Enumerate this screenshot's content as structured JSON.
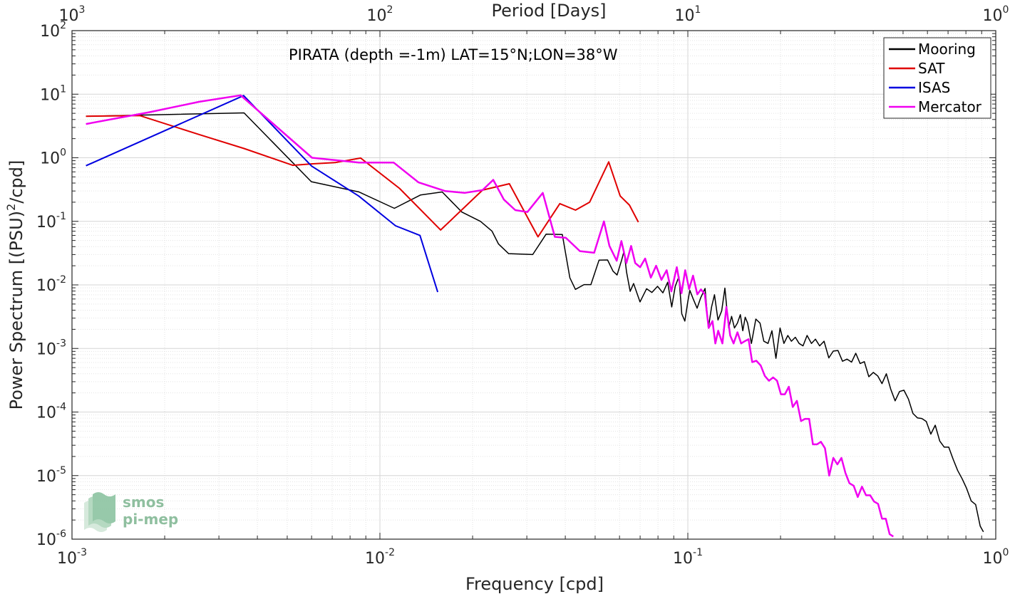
{
  "chart_data": {
    "type": "line",
    "title": "PIRATA (depth =-1m) LAT=15°N;LON=38°W",
    "xlabel": "Frequency [cpd]",
    "ylabel": "Power Spectrum [(PSU)",
    "ylabel_exp": "2",
    "ylabel_tail": "/cpd]",
    "top_xlabel": "Period [Days]",
    "xscale": "log",
    "yscale": "log",
    "xlim": [
      0.001,
      1
    ],
    "ylim": [
      1e-06,
      100
    ],
    "grid": true,
    "minor_grid": true,
    "legend_position": "top-right",
    "x_ticks": [
      {
        "value": 0.001,
        "base": "10",
        "exp": "-3"
      },
      {
        "value": 0.01,
        "base": "10",
        "exp": "-2"
      },
      {
        "value": 0.1,
        "base": "10",
        "exp": "-1"
      },
      {
        "value": 1,
        "base": "10",
        "exp": "0"
      }
    ],
    "top_ticks": [
      {
        "freq": 0.001,
        "base": "10",
        "exp": "3"
      },
      {
        "freq": 0.01,
        "base": "10",
        "exp": "2"
      },
      {
        "freq": 0.1,
        "base": "10",
        "exp": "1"
      },
      {
        "freq": 1,
        "base": "10",
        "exp": "0"
      }
    ],
    "y_ticks": [
      {
        "value": 100,
        "base": "10",
        "exp": "2"
      },
      {
        "value": 10,
        "base": "10",
        "exp": "1"
      },
      {
        "value": 1,
        "base": "10",
        "exp": "0"
      },
      {
        "value": 0.1,
        "base": "10",
        "exp": "-1"
      },
      {
        "value": 0.01,
        "base": "10",
        "exp": "-2"
      },
      {
        "value": 0.001,
        "base": "10",
        "exp": "-3"
      },
      {
        "value": 0.0001,
        "base": "10",
        "exp": "-4"
      },
      {
        "value": 1e-05,
        "base": "10",
        "exp": "-5"
      },
      {
        "value": 1e-06,
        "base": "10",
        "exp": "-6"
      }
    ],
    "series": [
      {
        "name": "Mooring",
        "color": "#000000",
        "width": 1.5,
        "x": [
          0.00111,
          0.00362,
          0.00599,
          0.00855,
          0.01114,
          0.01356,
          0.01593,
          0.01845,
          0.02121,
          0.02313,
          0.02428,
          0.02617,
          0.03135,
          0.03465,
          0.03911,
          0.04138,
          0.04314,
          0.04603,
          0.04843,
          0.05146,
          0.05488,
          0.05716,
          0.0589,
          0.06095,
          0.06206,
          0.06323,
          0.06497,
          0.06667,
          0.06994,
          0.07346,
          0.07646,
          0.07975,
          0.08296,
          0.08598,
          0.08864,
          0.09099,
          0.09354,
          0.09557,
          0.09779,
          0.1,
          0.10151,
          0.1044,
          0.10717,
          0.11011,
          0.11375,
          0.11661,
          0.11941,
          0.12208,
          0.12532,
          0.12884,
          0.13192,
          0.13573,
          0.1387,
          0.14174,
          0.14487,
          0.14808,
          0.1508,
          0.15356,
          0.15638,
          0.16086,
          0.16626,
          0.17155,
          0.17648,
          0.18219,
          0.1876,
          0.19325,
          0.1993,
          0.20516,
          0.21121,
          0.21689,
          0.22339,
          0.22983,
          0.23663,
          0.24389,
          0.25195,
          0.25965,
          0.26798,
          0.27691,
          0.28706,
          0.29676,
          0.30726,
          0.31786,
          0.32889,
          0.34013,
          0.35105,
          0.36265,
          0.37425,
          0.38704,
          0.40023,
          0.41364,
          0.42709,
          0.44118,
          0.45594,
          0.47118,
          0.48708,
          0.50344,
          0.52064,
          0.53822,
          0.55663,
          0.57533,
          0.59485,
          0.61524,
          0.63611,
          0.65788,
          0.68037,
          0.70335,
          0.72733,
          0.75223,
          0.77797,
          0.80425,
          0.83187,
          0.86054,
          0.89043,
          0.91188
        ],
        "y": [
          4.5,
          5.08,
          0.42,
          0.29,
          0.16,
          0.26,
          0.29,
          0.14,
          0.1,
          0.07,
          0.044,
          0.031,
          0.03,
          0.063,
          0.062,
          0.0129,
          0.0085,
          0.0101,
          0.0101,
          0.0245,
          0.0247,
          0.0164,
          0.0143,
          0.0245,
          0.034,
          0.016,
          0.0079,
          0.0105,
          0.0054,
          0.0087,
          0.0076,
          0.0095,
          0.0075,
          0.011,
          0.0045,
          0.0095,
          0.0135,
          0.0035,
          0.0027,
          0.0055,
          0.0082,
          0.0058,
          0.0043,
          0.0063,
          0.0088,
          0.0021,
          0.0045,
          0.007,
          0.0028,
          0.0039,
          0.0089,
          0.0021,
          0.0032,
          0.0021,
          0.0025,
          0.0034,
          0.0019,
          0.0031,
          0.0025,
          0.0012,
          0.0029,
          0.0025,
          0.0013,
          0.0012,
          0.0019,
          0.0007,
          0.0021,
          0.0012,
          0.0016,
          0.0013,
          0.0015,
          0.0012,
          0.0011,
          0.0016,
          0.0012,
          0.0014,
          0.0011,
          0.0013,
          0.00071,
          0.00091,
          0.00093,
          0.00063,
          0.00068,
          0.00061,
          0.00084,
          0.00058,
          0.00062,
          0.00036,
          0.00042,
          0.00037,
          0.00028,
          0.0004,
          0.00023,
          0.00015,
          0.00021,
          0.00022,
          0.00016,
          9.5e-05,
          8.1e-05,
          7.9e-05,
          7.1e-05,
          4.5e-05,
          6.2e-05,
          3.5e-05,
          2.8e-05,
          2.8e-05,
          1.8e-05,
          1.2e-05,
          8.9e-06,
          6.3e-06,
          4e-06,
          3.5e-06,
          1.6e-06,
          1.3e-06
        ]
      },
      {
        "name": "SAT",
        "color": "#e00000",
        "width": 2,
        "x": [
          0.00111,
          0.00166,
          0.0026,
          0.00362,
          0.00521,
          0.00599,
          0.00715,
          0.00866,
          0.01158,
          0.01575,
          0.02154,
          0.02632,
          0.03262,
          0.03839,
          0.04317,
          0.04797,
          0.05535,
          0.06029,
          0.06462,
          0.06908
        ],
        "y": [
          4.5,
          4.6,
          2.3,
          1.4,
          0.76,
          0.8,
          0.84,
          0.99,
          0.33,
          0.073,
          0.31,
          0.39,
          0.057,
          0.19,
          0.15,
          0.2,
          0.86,
          0.25,
          0.18,
          0.097
        ]
      },
      {
        "name": "ISAS",
        "color": "#0000e0",
        "width": 2,
        "x": [
          0.00111,
          0.00361,
          0.006,
          0.00853,
          0.01124,
          0.01349,
          0.01541
        ],
        "y": [
          0.75,
          9.51,
          0.74,
          0.25,
          0.085,
          0.06,
          0.0077
        ]
      },
      {
        "name": "Mercator",
        "color": "#f000f0",
        "width": 2.5,
        "x": [
          0.00111,
          0.00178,
          0.00259,
          0.00353,
          0.00602,
          0.00855,
          0.01109,
          0.01335,
          0.01627,
          0.01886,
          0.02155,
          0.02334,
          0.02527,
          0.02752,
          0.03012,
          0.03381,
          0.03698,
          0.04016,
          0.04461,
          0.04963,
          0.05341,
          0.05565,
          0.05875,
          0.06084,
          0.06316,
          0.06542,
          0.06749,
          0.07002,
          0.07268,
          0.07583,
          0.07888,
          0.08212,
          0.08534,
          0.08842,
          0.09205,
          0.09535,
          0.09807,
          0.10094,
          0.10397,
          0.10732,
          0.11031,
          0.11354,
          0.11685,
          0.12025,
          0.12284,
          0.12549,
          0.12947,
          0.13345,
          0.13725,
          0.14078,
          0.14492,
          0.14901,
          0.15299,
          0.15751,
          0.16186,
          0.16688,
          0.17246,
          0.17787,
          0.18339,
          0.18926,
          0.19492,
          0.2006,
          0.20671,
          0.21277,
          0.21914,
          0.22609,
          0.23312,
          0.24025,
          0.24771,
          0.25478,
          0.26251,
          0.27053,
          0.27889,
          0.28771,
          0.29684,
          0.30589,
          0.31534,
          0.32498,
          0.33477,
          0.34573,
          0.35627,
          0.36764,
          0.37896,
          0.39095,
          0.40265,
          0.41471,
          0.42713,
          0.43941,
          0.45213,
          0.46499
        ],
        "y": [
          3.4,
          5.2,
          7.6,
          9.6,
          1.0,
          0.84,
          0.84,
          0.41,
          0.3,
          0.28,
          0.31,
          0.45,
          0.22,
          0.15,
          0.14,
          0.28,
          0.057,
          0.055,
          0.034,
          0.032,
          0.1,
          0.041,
          0.024,
          0.049,
          0.022,
          0.041,
          0.022,
          0.019,
          0.026,
          0.013,
          0.02,
          0.012,
          0.017,
          0.0079,
          0.019,
          0.0074,
          0.017,
          0.0086,
          0.014,
          0.0071,
          0.0085,
          0.0071,
          0.0021,
          0.0027,
          0.0012,
          0.0019,
          0.0012,
          0.0045,
          0.0016,
          0.0012,
          0.0018,
          0.0012,
          0.0013,
          0.0014,
          0.00061,
          0.00064,
          0.00054,
          0.00037,
          0.00031,
          0.00035,
          0.00031,
          0.00019,
          0.00019,
          0.00025,
          0.00012,
          0.00015,
          7.2e-05,
          7.8e-05,
          7.8e-05,
          3.1e-05,
          3.1e-05,
          3.4e-05,
          2.7e-05,
          1e-05,
          1.9e-05,
          1.5e-05,
          1.9e-05,
          1.1e-05,
          7.6e-06,
          6.9e-06,
          4.6e-06,
          6.7e-06,
          4.9e-06,
          4.9e-06,
          3.9e-06,
          3.6e-06,
          2.1e-06,
          2.1e-06,
          1.2e-06,
          1.1e-06
        ]
      }
    ]
  },
  "logo": {
    "line1": "smos",
    "line2": "pi-mep",
    "color": "#8fbf9f"
  }
}
